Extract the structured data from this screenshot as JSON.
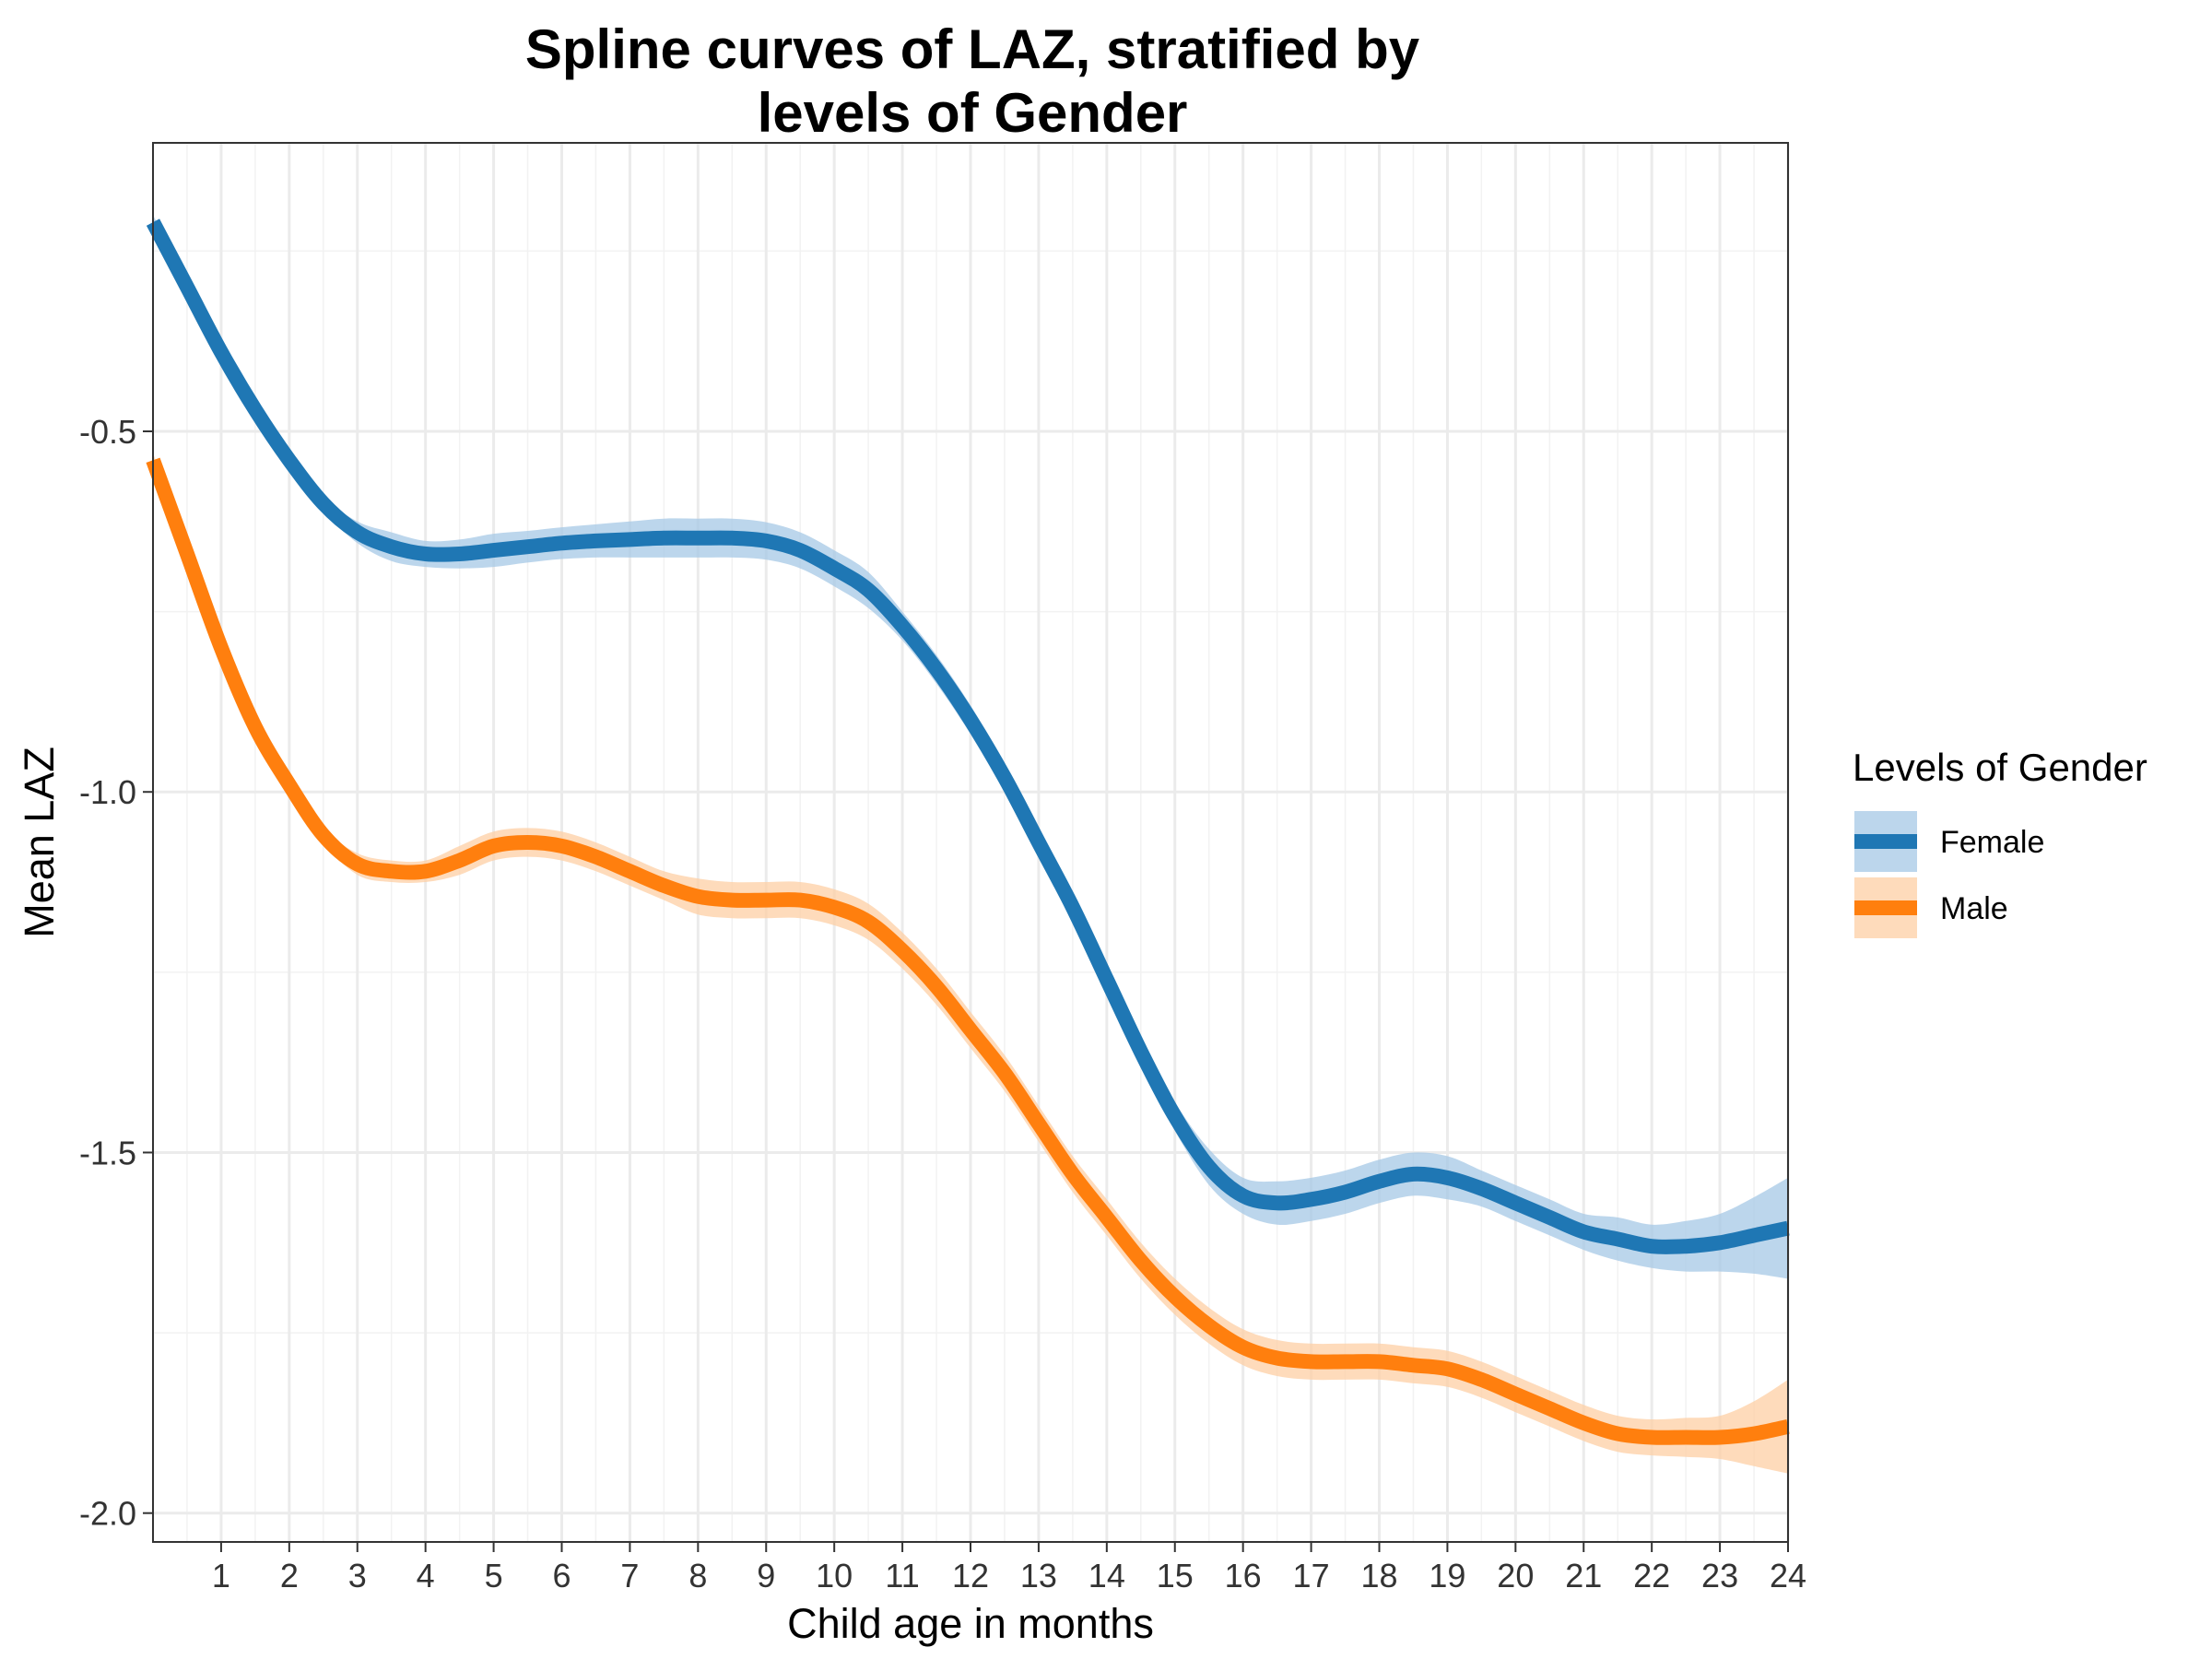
{
  "chart_data": {
    "type": "line",
    "title_line1": "Spline curves of LAZ, stratified by",
    "title_line2": "levels of Gender",
    "xlabel": "Child age in months",
    "ylabel": "Mean LAZ",
    "xlim": [
      0,
      24
    ],
    "ylim": [
      -2.04,
      -0.1
    ],
    "xticks": [
      1,
      2,
      3,
      4,
      5,
      6,
      7,
      8,
      9,
      10,
      11,
      12,
      13,
      14,
      15,
      16,
      17,
      18,
      19,
      20,
      21,
      22,
      23,
      24
    ],
    "yticks": [
      -2.0,
      -1.5,
      -1.0,
      -0.5
    ],
    "ytick_labels": [
      "-2.0",
      "-1.5",
      "-1.0",
      "-0.5"
    ],
    "grid": true,
    "legend": {
      "title": "Levels of Gender",
      "placement": "right"
    },
    "x": [
      0,
      0.5,
      1,
      1.5,
      2,
      2.5,
      3,
      3.5,
      4,
      4.5,
      5,
      5.5,
      6,
      6.5,
      7,
      7.5,
      8,
      8.5,
      9,
      9.5,
      10,
      10.5,
      11,
      11.5,
      12,
      12.5,
      13,
      13.5,
      14,
      14.5,
      15,
      15.5,
      16,
      16.5,
      17,
      17.5,
      18,
      18.5,
      19,
      19.5,
      20,
      20.5,
      21,
      21.5,
      22,
      22.5,
      23,
      23.5,
      24
    ],
    "series": [
      {
        "name": "Female",
        "color": "#1f77b4",
        "band_color": "#a6c8e6",
        "values": [
          -0.21,
          -0.3,
          -0.39,
          -0.47,
          -0.54,
          -0.6,
          -0.64,
          -0.66,
          -0.67,
          -0.67,
          -0.665,
          -0.66,
          -0.655,
          -0.652,
          -0.65,
          -0.648,
          -0.648,
          -0.648,
          -0.652,
          -0.665,
          -0.69,
          -0.72,
          -0.77,
          -0.83,
          -0.9,
          -0.98,
          -1.07,
          -1.16,
          -1.26,
          -1.36,
          -1.45,
          -1.52,
          -1.56,
          -1.57,
          -1.565,
          -1.555,
          -1.54,
          -1.53,
          -1.535,
          -1.55,
          -1.57,
          -1.59,
          -1.61,
          -1.62,
          -1.63,
          -1.63,
          -1.625,
          -1.615,
          -1.605
        ],
        "lower": [
          -0.22,
          -0.31,
          -0.4,
          -0.48,
          -0.55,
          -0.61,
          -0.655,
          -0.68,
          -0.688,
          -0.69,
          -0.688,
          -0.682,
          -0.677,
          -0.675,
          -0.675,
          -0.675,
          -0.675,
          -0.675,
          -0.678,
          -0.69,
          -0.715,
          -0.745,
          -0.79,
          -0.85,
          -0.92,
          -1.0,
          -1.09,
          -1.18,
          -1.28,
          -1.38,
          -1.47,
          -1.545,
          -1.585,
          -1.6,
          -1.595,
          -1.585,
          -1.57,
          -1.56,
          -1.565,
          -1.575,
          -1.595,
          -1.615,
          -1.635,
          -1.65,
          -1.66,
          -1.665,
          -1.665,
          -1.668,
          -1.675
        ],
        "upper": [
          -0.2,
          -0.29,
          -0.38,
          -0.46,
          -0.53,
          -0.59,
          -0.625,
          -0.64,
          -0.652,
          -0.65,
          -0.642,
          -0.638,
          -0.633,
          -0.629,
          -0.625,
          -0.621,
          -0.621,
          -0.621,
          -0.626,
          -0.64,
          -0.665,
          -0.695,
          -0.75,
          -0.81,
          -0.88,
          -0.96,
          -1.05,
          -1.14,
          -1.24,
          -1.34,
          -1.43,
          -1.495,
          -1.535,
          -1.54,
          -1.535,
          -1.525,
          -1.51,
          -1.5,
          -1.505,
          -1.525,
          -1.545,
          -1.565,
          -1.585,
          -1.59,
          -1.6,
          -1.595,
          -1.585,
          -1.562,
          -1.535
        ]
      },
      {
        "name": "Male",
        "color": "#ff7f0e",
        "band_color": "#fdcfa4",
        "values": [
          -0.54,
          -0.67,
          -0.8,
          -0.91,
          -0.99,
          -1.06,
          -1.1,
          -1.11,
          -1.11,
          -1.095,
          -1.075,
          -1.07,
          -1.075,
          -1.09,
          -1.11,
          -1.13,
          -1.145,
          -1.15,
          -1.15,
          -1.15,
          -1.16,
          -1.18,
          -1.22,
          -1.27,
          -1.33,
          -1.39,
          -1.46,
          -1.53,
          -1.59,
          -1.65,
          -1.7,
          -1.74,
          -1.77,
          -1.785,
          -1.79,
          -1.79,
          -1.79,
          -1.795,
          -1.8,
          -1.815,
          -1.835,
          -1.855,
          -1.875,
          -1.89,
          -1.895,
          -1.895,
          -1.895,
          -1.89,
          -1.88
        ],
        "lower": [
          -0.55,
          -0.68,
          -0.81,
          -0.92,
          -1.0,
          -1.07,
          -1.115,
          -1.125,
          -1.125,
          -1.115,
          -1.095,
          -1.09,
          -1.095,
          -1.11,
          -1.13,
          -1.15,
          -1.17,
          -1.175,
          -1.175,
          -1.175,
          -1.185,
          -1.205,
          -1.245,
          -1.295,
          -1.355,
          -1.415,
          -1.485,
          -1.555,
          -1.615,
          -1.675,
          -1.725,
          -1.765,
          -1.795,
          -1.81,
          -1.815,
          -1.815,
          -1.815,
          -1.82,
          -1.825,
          -1.84,
          -1.86,
          -1.88,
          -1.9,
          -1.915,
          -1.92,
          -1.922,
          -1.925,
          -1.935,
          -1.945
        ],
        "upper": [
          -0.53,
          -0.66,
          -0.79,
          -0.9,
          -0.98,
          -1.05,
          -1.085,
          -1.095,
          -1.095,
          -1.075,
          -1.055,
          -1.05,
          -1.055,
          -1.07,
          -1.09,
          -1.11,
          -1.12,
          -1.125,
          -1.125,
          -1.125,
          -1.135,
          -1.155,
          -1.195,
          -1.245,
          -1.305,
          -1.365,
          -1.435,
          -1.505,
          -1.565,
          -1.625,
          -1.675,
          -1.715,
          -1.745,
          -1.76,
          -1.765,
          -1.765,
          -1.765,
          -1.77,
          -1.775,
          -1.79,
          -1.81,
          -1.83,
          -1.85,
          -1.865,
          -1.87,
          -1.868,
          -1.865,
          -1.845,
          -1.815
        ]
      }
    ]
  }
}
